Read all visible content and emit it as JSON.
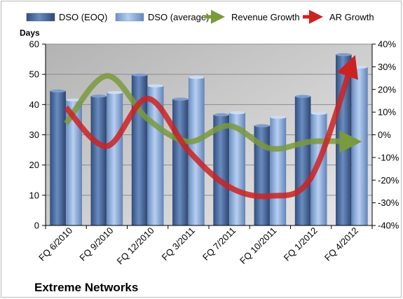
{
  "chart_data": {
    "type": "bar",
    "categories": [
      "FQ 6/2010",
      "FQ 9/2010",
      "FQ 12/2010",
      "FQ 3/2011",
      "FQ 7/2011",
      "FQ 10/2011",
      "FQ 1/2012",
      "FQ 4/2012"
    ],
    "series": [
      {
        "name": "DSO (EOQ)",
        "kind": "bar",
        "axis": "left",
        "color": "#4a6a9c",
        "values": [
          44.5,
          42.8,
          49.8,
          41.8,
          36.6,
          33.0,
          42.7,
          56.5
        ]
      },
      {
        "name": "DSO (average)",
        "kind": "bar",
        "axis": "left",
        "color": "#8fb0dc",
        "values": [
          41.5,
          44.0,
          46.2,
          49.0,
          37.3,
          35.8,
          37.1,
          52.4
        ]
      },
      {
        "name": "Revenue Growth",
        "kind": "line",
        "axis": "right",
        "color": "#7a9a3c",
        "values": [
          0.05,
          0.26,
          0.07,
          -0.03,
          0.04,
          -0.06,
          -0.03,
          -0.03
        ]
      },
      {
        "name": "AR Growth",
        "kind": "line",
        "axis": "right",
        "color": "#cc2222",
        "values": [
          0.12,
          -0.05,
          0.16,
          -0.07,
          -0.23,
          -0.27,
          -0.19,
          0.31
        ]
      }
    ],
    "y_axis_left": {
      "title": "Days",
      "min": 0,
      "max": 60,
      "step": 10,
      "ticks": [
        "0",
        "10",
        "20",
        "30",
        "40",
        "50",
        "60"
      ]
    },
    "y_axis_right": {
      "min": -0.4,
      "max": 0.4,
      "step": 0.1,
      "ticks": [
        "-40%",
        "-30%",
        "-20%",
        "-10%",
        "0%",
        "10%",
        "20%",
        "30%",
        "40%"
      ]
    },
    "legend_position": "top",
    "plot_background": "#c0c0c0",
    "grid": true
  },
  "company_label": "Extreme Networks"
}
